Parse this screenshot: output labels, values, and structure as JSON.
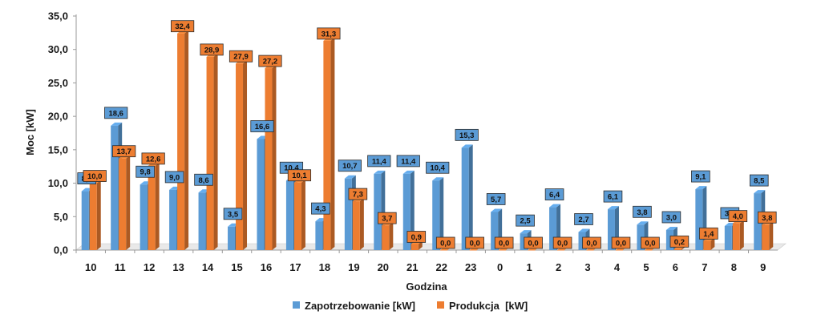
{
  "chart_data": {
    "type": "bar",
    "title": "",
    "xlabel": "Godzina",
    "ylabel": "Moc [kW]",
    "ylim": [
      0,
      35
    ],
    "yticks": [
      "0,0",
      "5,0",
      "10,0",
      "15,0",
      "20,0",
      "25,0",
      "30,0",
      "35,0"
    ],
    "grid": false,
    "legend_position": "bottom",
    "categories": [
      "10",
      "11",
      "12",
      "13",
      "14",
      "15",
      "16",
      "17",
      "18",
      "19",
      "20",
      "21",
      "22",
      "23",
      "0",
      "1",
      "2",
      "3",
      "4",
      "5",
      "6",
      "7",
      "8",
      "9"
    ],
    "series": [
      {
        "name": "Zapotrzebowanie [kW]",
        "color": "#5b9bd5",
        "values": [
          8.8,
          18.6,
          9.8,
          9.0,
          8.6,
          3.5,
          16.6,
          10.4,
          4.3,
          10.7,
          11.4,
          11.4,
          10.4,
          15.3,
          5.7,
          2.5,
          6.4,
          2.7,
          6.1,
          3.8,
          3.0,
          9.1,
          3.6,
          8.5
        ],
        "labels": [
          "8,8",
          "18,6",
          "9,8",
          "9,0",
          "8,6",
          "3,5",
          "16,6",
          "10,4",
          "4,3",
          "10,7",
          "11,4",
          "11,4",
          "10,4",
          "15,3",
          "5,7",
          "2,5",
          "6,4",
          "2,7",
          "6,1",
          "3,8",
          "3,0",
          "9,1",
          "3,6",
          "8,5"
        ]
      },
      {
        "name": "Produkcja  [kW]",
        "color": "#ed7d31",
        "values": [
          10.0,
          13.7,
          12.6,
          32.4,
          28.9,
          27.9,
          27.2,
          10.1,
          31.3,
          7.3,
          3.7,
          0.9,
          0.0,
          0.0,
          0.0,
          0.0,
          0.0,
          0.0,
          0.0,
          0.0,
          0.2,
          1.4,
          4.0,
          3.8
        ],
        "labels": [
          "10,0",
          "13,7",
          "12,6",
          "32,4",
          "28,9",
          "27,9",
          "27,2",
          "10,1",
          "31,3",
          "7,3",
          "3,7",
          "0,9",
          "0,0",
          "0,0",
          "0,0",
          "0,0",
          "0,0",
          "0,0",
          "0,0",
          "0,0",
          "0,2",
          "1,4",
          "4,0",
          "3,8"
        ]
      }
    ]
  }
}
